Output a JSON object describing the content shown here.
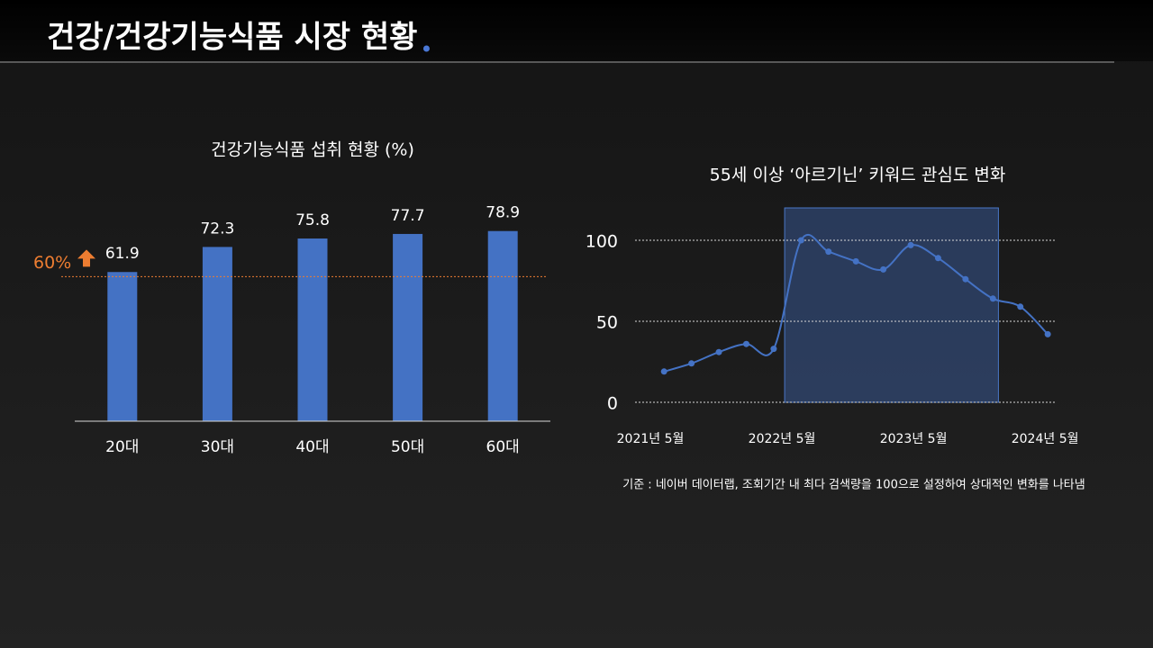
{
  "title": "건강/건강기능식품 시장 현황",
  "chart_data": [
    {
      "type": "bar",
      "title": "건강기능식품 섭취 현황 (%)",
      "categories": [
        "20대",
        "30대",
        "40대",
        "50대",
        "60대"
      ],
      "values": [
        61.9,
        72.3,
        75.8,
        77.7,
        78.9
      ],
      "color": "#4472c4",
      "ylim": [
        0,
        90
      ],
      "reference_line": {
        "value": 60,
        "label": "60%",
        "color": "#ed7d31"
      }
    },
    {
      "type": "line",
      "title": "55세 이상 ‘아르기닌’ 키워드 관심도 변화",
      "x": [
        1.25,
        3.75,
        6.25,
        8.75,
        11.25,
        13.75,
        16.25,
        18.75,
        21.25,
        23.75,
        26.25,
        28.75,
        31.25,
        33.75,
        36.25
      ],
      "values": [
        19,
        24,
        31,
        36,
        33,
        100,
        93,
        87,
        82,
        97,
        89,
        76,
        64,
        59,
        42
      ],
      "color": "#4472c4",
      "xlim": [
        -1.5,
        37.5
      ],
      "xticks": [
        {
          "value": 0,
          "label": "2021년 5월"
        },
        {
          "value": 12,
          "label": "2022년 5월"
        },
        {
          "value": 24,
          "label": "2023년 5월"
        },
        {
          "value": 36,
          "label": "2024년 5월"
        }
      ],
      "ylim": [
        0,
        120
      ],
      "yticks": [
        0,
        50,
        100
      ],
      "grid": true,
      "highlight_range": [
        12.25,
        31.75
      ],
      "note": "기준 : 네이버 데이터랩, 조회기간 내 최다 검색량을 100으로 설정하여 상대적인 변화를 나타냄"
    }
  ]
}
